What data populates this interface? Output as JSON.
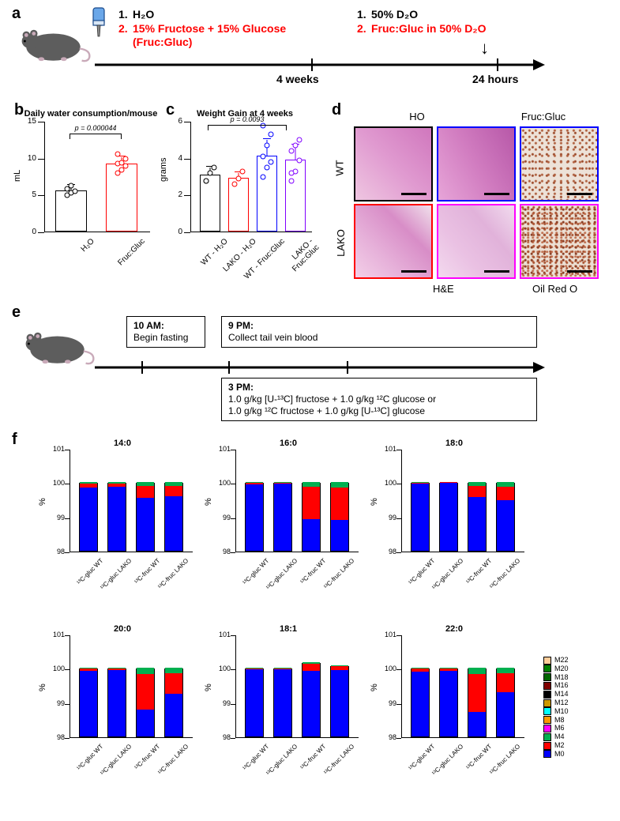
{
  "panel_labels": {
    "a": "a",
    "b": "b",
    "c": "c",
    "d": "d",
    "e": "e",
    "f": "f"
  },
  "panel_a": {
    "list1": {
      "num1": "1.",
      "txt1": "H₂O",
      "num2": "2.",
      "txt2": "15% Fructose + 15% Glucose",
      "txt2b": "(Fruc:Gluc)",
      "color1": "#000000",
      "color2": "#ff0000"
    },
    "list2": {
      "num1": "1.",
      "txt1": "50% D₂O",
      "num2": "2.",
      "txt2": "Fruc:Gluc in 50% D₂O",
      "color1": "#000000",
      "color2": "#ff0000"
    },
    "timeline_labels": {
      "w4": "4 weeks",
      "w24": "24 hours"
    }
  },
  "panel_b": {
    "title": "Daily water consumption/mouse",
    "ylabel": "mL",
    "ylim": [
      0,
      15
    ],
    "yticks": [
      0,
      5,
      10,
      15
    ],
    "pval": "p = 0.000044",
    "bars": [
      {
        "label": "H₂O",
        "mean": 5.6,
        "sd": 0.7,
        "color": "#000000",
        "points": [
          5.0,
          5.4,
          5.6,
          5.9,
          6.3
        ]
      },
      {
        "label": "Fruc:Gluc",
        "mean": 9.2,
        "sd": 1.0,
        "color": "#ff0000",
        "points": [
          8.0,
          8.5,
          9.0,
          9.3,
          9.4,
          10.0,
          10.6
        ]
      }
    ]
  },
  "panel_c": {
    "title": "Weight  Gain at 4 weeks",
    "ylabel": "grams",
    "ylim": [
      0,
      6
    ],
    "yticks": [
      0,
      2,
      4,
      6
    ],
    "pval": "p = 0.0093",
    "bars": [
      {
        "label": "WT - H₂O",
        "mean": 3.1,
        "sd": 0.4,
        "color": "#000000",
        "points": [
          2.8,
          3.2,
          3.5,
          2.8
        ]
      },
      {
        "label": "LAKO - H₂O",
        "mean": 2.9,
        "sd": 0.3,
        "color": "#ff0000",
        "points": [
          2.6,
          2.9,
          3.3
        ]
      },
      {
        "label": "WT - Fruc:Gluc",
        "mean": 4.1,
        "sd": 0.9,
        "color": "#0000ff",
        "points": [
          3.0,
          3.5,
          3.8,
          4.1,
          4.7,
          5.3,
          5.8
        ]
      },
      {
        "label": "LAKO - Fruc:Gluc",
        "mean": 3.9,
        "sd": 0.8,
        "color": "#8000ff",
        "points": [
          2.8,
          3.3,
          3.9,
          4.4,
          4.7,
          5.0,
          3.2
        ]
      }
    ]
  },
  "panel_d": {
    "col_labels": [
      "HO",
      "Fruc:Gluc"
    ],
    "row_labels": [
      "WT",
      "LAKO"
    ],
    "stain_labels": {
      "he": "H&E",
      "oro": "Oil Red O"
    },
    "border_colors": {
      "wt_ho": "#000000",
      "wt_fg": "#0000ff",
      "wt_oro": "#0000ff",
      "lako_ho": "#ff0000",
      "lako_fg": "#ff00ff",
      "lako_oro": "#ff00ff"
    }
  },
  "panel_e": {
    "box1": {
      "time": "10 AM:",
      "text": "Begin fasting"
    },
    "box2": {
      "time": "9 PM:",
      "text": "Collect tail vein blood"
    },
    "box3": {
      "time": "3 PM:",
      "line1": "1.0 g/kg [U-¹³C] fructose + 1.0 g/kg ¹²C glucose or",
      "line2": "1.0 g/kg ¹²C fructose + 1.0 g/kg [U-¹³C] glucose"
    }
  },
  "panel_f": {
    "ylabel": "%",
    "ylim": [
      98,
      101
    ],
    "yticks": [
      98,
      99,
      100,
      101
    ],
    "xlabels": [
      "¹³C-gluc WT",
      "¹³C-gluc LAKO",
      "¹³C-fruc WT",
      "¹³C-fruc LAKO"
    ],
    "iso_colors": {
      "M0": "#0000ff",
      "M2": "#ff0000",
      "M4": "#00b050",
      "M6": "#ff00ff",
      "M8": "#ff9900",
      "M10": "#00ffff",
      "M12": "#cc9900",
      "M14": "#000000",
      "M16": "#800000",
      "M18": "#006600",
      "M20": "#008000",
      "M22": "#ffcc99"
    },
    "legend_order": [
      "M22",
      "M20",
      "M18",
      "M16",
      "M14",
      "M12",
      "M10",
      "M8",
      "M6",
      "M4",
      "M2",
      "M0"
    ],
    "charts": [
      {
        "title": "14:0",
        "row": 0,
        "col": 0,
        "bars": [
          {
            "M0": 1.85,
            "M2": 0.12,
            "M4": 0.03
          },
          {
            "M0": 1.87,
            "M2": 0.1,
            "M4": 0.03
          },
          {
            "M0": 1.55,
            "M2": 0.35,
            "M4": 0.1
          },
          {
            "M0": 1.6,
            "M2": 0.3,
            "M4": 0.1
          }
        ]
      },
      {
        "title": "16:0",
        "row": 0,
        "col": 1,
        "bars": [
          {
            "M0": 1.95,
            "M2": 0.04,
            "M4": 0.01
          },
          {
            "M0": 1.96,
            "M2": 0.03,
            "M4": 0.01
          },
          {
            "M0": 0.92,
            "M2": 0.95,
            "M4": 0.13
          },
          {
            "M0": 0.9,
            "M2": 0.95,
            "M4": 0.15
          }
        ]
      },
      {
        "title": "18:0",
        "row": 0,
        "col": 2,
        "bars": [
          {
            "M0": 1.97,
            "M2": 0.02,
            "M4": 0.01
          },
          {
            "M0": 1.98,
            "M2": 0.02,
            "M4": 0.0
          },
          {
            "M0": 1.58,
            "M2": 0.32,
            "M4": 0.1
          },
          {
            "M0": 1.48,
            "M2": 0.4,
            "M4": 0.12
          }
        ]
      },
      {
        "title": "20:0",
        "row": 1,
        "col": 0,
        "bars": [
          {
            "M0": 1.92,
            "M2": 0.06,
            "M4": 0.02
          },
          {
            "M0": 1.93,
            "M2": 0.05,
            "M4": 0.02
          },
          {
            "M0": 0.78,
            "M2": 1.05,
            "M4": 0.17
          },
          {
            "M0": 1.25,
            "M2": 0.6,
            "M4": 0.15
          }
        ]
      },
      {
        "title": "18:1",
        "row": 1,
        "col": 1,
        "bars": [
          {
            "M0": 1.96,
            "M2": 0.03,
            "M4": 0.01
          },
          {
            "M0": 1.97,
            "M2": 0.02,
            "M4": 0.01
          },
          {
            "M0": 1.92,
            "M2": 0.2,
            "M4": 0.04
          },
          {
            "M0": 1.95,
            "M2": 0.1,
            "M4": 0.03
          }
        ]
      },
      {
        "title": "22:0",
        "row": 1,
        "col": 2,
        "bars": [
          {
            "M0": 1.9,
            "M2": 0.08,
            "M4": 0.02
          },
          {
            "M0": 1.92,
            "M2": 0.06,
            "M4": 0.02
          },
          {
            "M0": 0.72,
            "M2": 1.1,
            "M4": 0.18
          },
          {
            "M0": 1.3,
            "M2": 0.55,
            "M4": 0.15
          }
        ]
      }
    ]
  }
}
